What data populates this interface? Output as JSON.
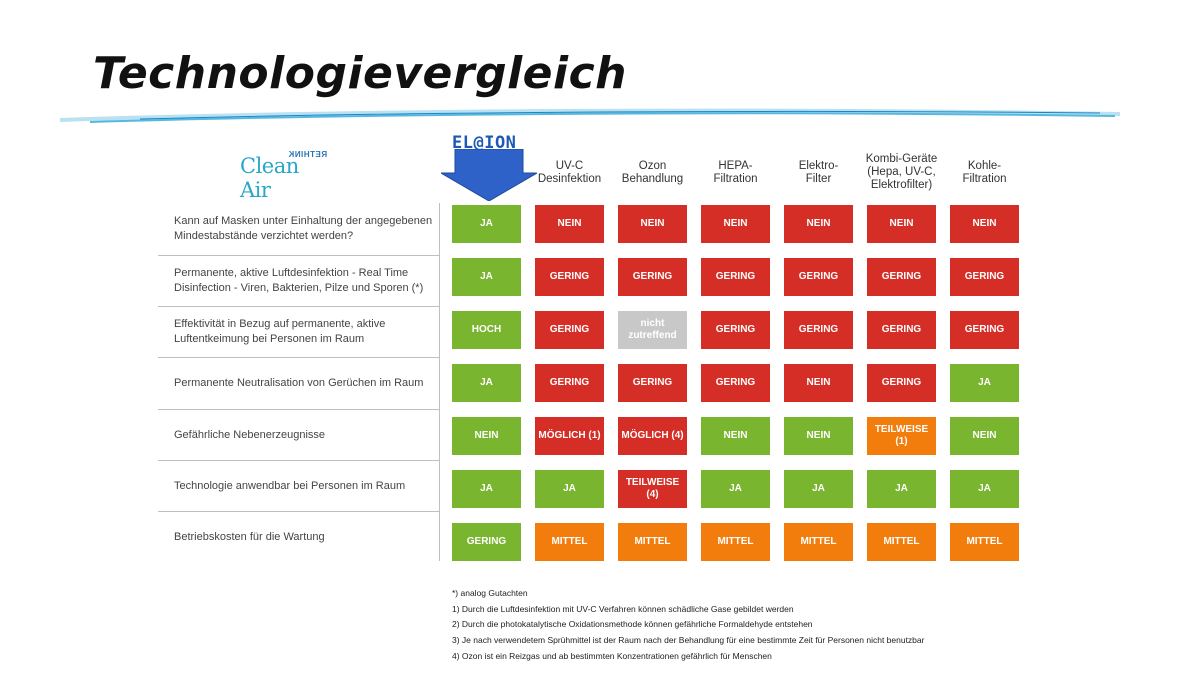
{
  "title": "Technologievergleich",
  "logos": {
    "clean_air": "Clean Air",
    "rethink": "RETHINK",
    "elion": "EL@ION"
  },
  "colors": {
    "ja_green": "#7ab52f",
    "nein_red": "#d42e26",
    "orange": "#f27d0d",
    "grey": "#c8c8c8"
  },
  "columns": [
    {
      "label": ""
    },
    {
      "label": "UV-C\nDesinfektion"
    },
    {
      "label": "Ozon\nBehandlung"
    },
    {
      "label": "HEPA-\nFiltration"
    },
    {
      "label": "Elektro-\nFilter"
    },
    {
      "label": "Kombi-Geräte\n(Hepa, UV-C,\nElektrofilter)"
    },
    {
      "label": "Kohle-\nFiltration"
    }
  ],
  "rows": [
    {
      "label": "Kann auf Masken unter Einhaltung der angegebenen Mindestabstände verzichtet werden?",
      "cells": [
        {
          "text": "JA",
          "c": "g"
        },
        {
          "text": "NEIN",
          "c": "r"
        },
        {
          "text": "NEIN",
          "c": "r"
        },
        {
          "text": "NEIN",
          "c": "r"
        },
        {
          "text": "NEIN",
          "c": "r"
        },
        {
          "text": "NEIN",
          "c": "r"
        },
        {
          "text": "NEIN",
          "c": "r"
        }
      ]
    },
    {
      "label": "Permanente, aktive Luftdesinfektion - Real Time Disinfection - Viren, Bakterien, Pilze und Sporen (*)",
      "cells": [
        {
          "text": "JA",
          "c": "g"
        },
        {
          "text": "GERING",
          "c": "r"
        },
        {
          "text": "GERING",
          "c": "r"
        },
        {
          "text": "GERING",
          "c": "r"
        },
        {
          "text": "GERING",
          "c": "r"
        },
        {
          "text": "GERING",
          "c": "r"
        },
        {
          "text": "GERING",
          "c": "r"
        }
      ]
    },
    {
      "label": "Effektivität in Bezug auf permanente, aktive Luftentkeimung bei Personen im Raum",
      "cells": [
        {
          "text": "HOCH",
          "c": "g"
        },
        {
          "text": "GERING",
          "c": "r"
        },
        {
          "text": "nicht\nzutreffend",
          "c": "x"
        },
        {
          "text": "GERING",
          "c": "r"
        },
        {
          "text": "GERING",
          "c": "r"
        },
        {
          "text": "GERING",
          "c": "r"
        },
        {
          "text": "GERING",
          "c": "r"
        }
      ]
    },
    {
      "label": "Permanente Neutralisation von Gerüchen im Raum",
      "cells": [
        {
          "text": "JA",
          "c": "g"
        },
        {
          "text": "GERING",
          "c": "r"
        },
        {
          "text": "GERING",
          "c": "r"
        },
        {
          "text": "GERING",
          "c": "r"
        },
        {
          "text": "NEIN",
          "c": "r"
        },
        {
          "text": "GERING",
          "c": "r"
        },
        {
          "text": "JA",
          "c": "g"
        }
      ]
    },
    {
      "label": "Gefährliche Nebenerzeugnisse",
      "cells": [
        {
          "text": "NEIN",
          "c": "g"
        },
        {
          "text": "MÖGLICH (1)",
          "c": "r"
        },
        {
          "text": "MÖGLICH (4)",
          "c": "r"
        },
        {
          "text": "NEIN",
          "c": "g"
        },
        {
          "text": "NEIN",
          "c": "g"
        },
        {
          "text": "TEILWEISE\n(1)",
          "c": "o"
        },
        {
          "text": "NEIN",
          "c": "g"
        }
      ]
    },
    {
      "label": "Technologie anwendbar bei Personen im Raum",
      "cells": [
        {
          "text": "JA",
          "c": "g"
        },
        {
          "text": "JA",
          "c": "g"
        },
        {
          "text": "TEILWEISE\n(4)",
          "c": "r"
        },
        {
          "text": "JA",
          "c": "g"
        },
        {
          "text": "JA",
          "c": "g"
        },
        {
          "text": "JA",
          "c": "g"
        },
        {
          "text": "JA",
          "c": "g"
        }
      ]
    },
    {
      "label": "Betriebskosten für die Wartung",
      "cells": [
        {
          "text": "GERING",
          "c": "g"
        },
        {
          "text": "MITTEL",
          "c": "o"
        },
        {
          "text": "MITTEL",
          "c": "o"
        },
        {
          "text": "MITTEL",
          "c": "o"
        },
        {
          "text": "MITTEL",
          "c": "o"
        },
        {
          "text": "MITTEL",
          "c": "o"
        },
        {
          "text": "MITTEL",
          "c": "o"
        }
      ]
    }
  ],
  "footnotes": [
    "*) analog Gutachten",
    "1) Durch die Luftdesinfektion mit UV-C Verfahren können schädliche Gase gebildet werden",
    "2) Durch die photokatalytische Oxidationsmethode können gefährliche Formaldehyde entstehen",
    "3) Je nach verwendetem Sprühmittel ist der Raum nach der Behandlung für eine bestimmte Zeit für Personen nicht benutzbar",
    "4) Ozon ist ein Reizgas und ab bestimmten Konzentrationen gefährlich für Menschen"
  ]
}
